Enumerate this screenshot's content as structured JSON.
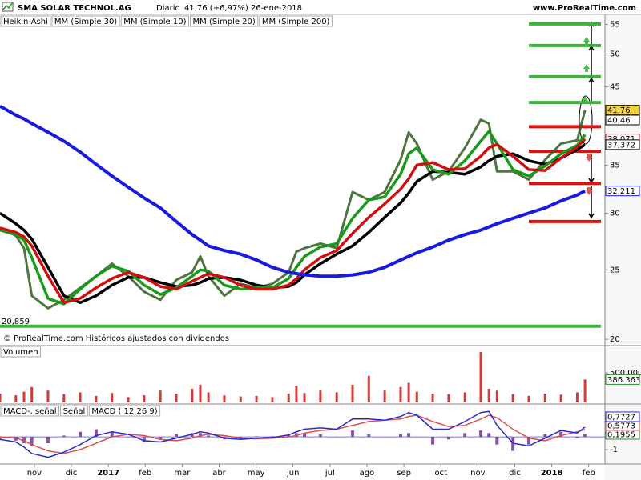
{
  "chart_data": [
    {
      "type": "line",
      "log": true,
      "title": "SMA SOLAR TECHNOL.AG",
      "period": "Diario",
      "quote": "41,76 (+6,97%)",
      "date": "26-ene-2018",
      "source": "www.ProRealTime.com",
      "footer": "© ProRealTime.com Históricos ajustados con dividendos",
      "x": [
        -0.93,
        -0.5,
        -0.28,
        -0.07,
        0.37,
        0.8,
        1.24,
        1.67,
        2.1,
        2.54,
        2.97,
        3.41,
        3.84,
        4.27,
        4.49,
        4.71,
        5.14,
        5.58,
        6.01,
        6.44,
        6.88,
        7.09,
        7.31,
        7.74,
        8.18,
        8.61,
        9.05,
        9.48,
        9.91,
        10.13,
        10.35,
        10.78,
        11.21,
        11.65,
        12.08,
        12.3,
        12.52,
        12.95,
        13.38,
        13.82,
        14.25,
        14.69,
        14.9
      ],
      "xlim": [
        -0.93,
        15.44
      ],
      "ylim": [
        19.7,
        56.8
      ],
      "yticks": [
        20,
        25,
        30,
        35,
        45,
        50,
        55
      ],
      "series": [
        {
          "name": "Heikin-Ashi",
          "color": "#2f5d1e",
          "values": [
            28.6,
            27.9,
            26.8,
            23.0,
            22.1,
            22.7,
            23.6,
            24.5,
            25.5,
            24.5,
            23.3,
            22.7,
            24.2,
            24.8,
            26.1,
            24.5,
            23.0,
            23.9,
            23.6,
            23.9,
            24.8,
            26.5,
            26.8,
            27.2,
            26.8,
            32.1,
            31.3,
            32.1,
            35.6,
            38.9,
            37.5,
            33.4,
            34.3,
            37.0,
            40.5,
            40.0,
            34.3,
            34.3,
            33.4,
            35.6,
            37.5,
            37.9,
            41.76
          ]
        },
        {
          "name": "MM (Simple 30)",
          "color": "#000000",
          "values": [
            30.0,
            29.0,
            28.4,
            27.6,
            25.2,
            23.0,
            22.5,
            23.0,
            23.8,
            24.4,
            24.4,
            24.0,
            23.7,
            23.8,
            24.0,
            24.3,
            24.4,
            24.2,
            23.8,
            23.6,
            23.7,
            24.0,
            24.6,
            25.5,
            26.3,
            27.0,
            28.2,
            29.6,
            31.0,
            32.0,
            33.2,
            34.3,
            34.2,
            34.0,
            34.8,
            35.5,
            36.0,
            36.3,
            35.5,
            35.1,
            35.8,
            36.8,
            37.372
          ]
        },
        {
          "name": "MM (Simple 10)",
          "color": "#1a9a1a",
          "values": [
            28.4,
            28.0,
            27.5,
            26.0,
            22.8,
            22.4,
            23.5,
            24.5,
            25.3,
            24.9,
            23.8,
            23.1,
            23.6,
            24.5,
            25.0,
            24.9,
            23.8,
            23.5,
            23.6,
            23.6,
            24.3,
            25.2,
            26.1,
            26.9,
            27.2,
            29.5,
            31.3,
            31.6,
            34.0,
            36.3,
            37.0,
            34.5,
            34.0,
            35.5,
            37.8,
            39.0,
            37.5,
            34.5,
            33.8,
            34.9,
            36.3,
            37.3,
            38.6
          ]
        },
        {
          "name": "MM (Simple 20)",
          "color": "#d01010",
          "values": [
            28.6,
            28.2,
            27.8,
            27.0,
            24.5,
            22.5,
            22.8,
            23.6,
            24.3,
            24.8,
            24.4,
            23.7,
            23.5,
            24.1,
            24.4,
            24.7,
            24.4,
            23.8,
            23.5,
            23.5,
            23.8,
            24.3,
            25.0,
            26.0,
            26.6,
            28.1,
            29.6,
            30.9,
            32.4,
            33.5,
            35.0,
            35.3,
            34.5,
            34.6,
            36.0,
            37.0,
            37.4,
            36.0,
            34.5,
            34.4,
            35.8,
            37.1,
            38.071
          ]
        },
        {
          "name": "MM (Simple 200)",
          "color": "#1a1adf",
          "values": [
            42.3,
            41.1,
            40.6,
            40.0,
            38.9,
            37.8,
            36.5,
            35.1,
            33.8,
            32.6,
            31.5,
            30.5,
            29.2,
            28.0,
            27.5,
            27.0,
            26.6,
            26.3,
            25.8,
            25.2,
            24.8,
            24.7,
            24.6,
            24.5,
            24.5,
            24.6,
            24.8,
            25.2,
            25.8,
            26.1,
            26.4,
            26.9,
            27.5,
            28.0,
            28.4,
            28.7,
            29.0,
            29.5,
            30.0,
            30.5,
            31.2,
            31.8,
            32.211
          ]
        }
      ],
      "levels": [
        {
          "value": 55.1,
          "color": "#3cb33c"
        },
        {
          "value": 51.4,
          "color": "#3cb33c"
        },
        {
          "value": 46.5,
          "color": "#3cb33c"
        },
        {
          "value": 42.8,
          "color": "#3cb33c"
        },
        {
          "value": 39.6,
          "color": "#e01010"
        },
        {
          "value": 36.6,
          "color": "#e01010"
        },
        {
          "value": 33.0,
          "color": "#e01010"
        },
        {
          "value": 29.2,
          "color": "#e01010"
        }
      ],
      "min_line": {
        "value": 20.859,
        "label": "20,859",
        "color": "#3cb33c"
      },
      "price_labels": [
        {
          "value": 41.76,
          "label": "41,76",
          "color": "#000000",
          "background": "#f5d142"
        },
        {
          "value": 40.46,
          "label": "40,46",
          "color": "#000000"
        },
        {
          "value": 38.071,
          "label": "38,071",
          "color": "#d01010"
        },
        {
          "value": 37.372,
          "label": "37,372",
          "color": "#000000"
        },
        {
          "value": 32.211,
          "label": "32,211",
          "color": "#1a1adf"
        }
      ]
    },
    {
      "type": "bar",
      "title": "Volumen",
      "ylim": [
        0,
        905000
      ],
      "yticks": [
        {
          "value": 500000,
          "label": "500.000"
        }
      ],
      "series": [
        {
          "name": "Volumen",
          "color": "#d23b3b",
          "values": [
            150000,
            120000,
            180000,
            260000,
            200000,
            140000,
            170000,
            110000,
            160000,
            90000,
            120000,
            200000,
            150000,
            230000,
            300000,
            170000,
            120000,
            100000,
            110000,
            90000,
            150000,
            280000,
            160000,
            200000,
            170000,
            300000,
            450000,
            200000,
            260000,
            330000,
            180000,
            150000,
            140000,
            170000,
            850000,
            230000,
            200000,
            140000,
            110000,
            150000,
            130000,
            170000,
            386363
          ]
        }
      ],
      "last_label": {
        "value": 386363,
        "label": "386.363",
        "color": "#2a8a2a"
      }
    },
    {
      "type": "line",
      "ylim": [
        -2.0,
        2.45
      ],
      "yticks": [
        -1
      ],
      "xticks": [
        {
          "value": 0,
          "label": "nov"
        },
        {
          "value": 1,
          "label": "dic"
        },
        {
          "value": 2,
          "label": "2017"
        },
        {
          "value": 3,
          "label": "feb"
        },
        {
          "value": 4,
          "label": "mar"
        },
        {
          "value": 5,
          "label": "abr"
        },
        {
          "value": 6,
          "label": "may"
        },
        {
          "value": 7,
          "label": "jun"
        },
        {
          "value": 8,
          "label": "jul"
        },
        {
          "value": 9,
          "label": "ago"
        },
        {
          "value": 10,
          "label": "sep"
        },
        {
          "value": 11,
          "label": "oct"
        },
        {
          "value": 12,
          "label": "nov"
        },
        {
          "value": 13,
          "label": "dic"
        },
        {
          "value": 14,
          "label": "2018"
        },
        {
          "value": 15,
          "label": "feb"
        }
      ],
      "series": [
        {
          "name": "MACD-, señal",
          "color": "#8a4fa8",
          "style": "histogram",
          "values": [
            -0.2,
            -0.3,
            -0.5,
            -0.7,
            -0.5,
            0.1,
            0.4,
            0.6,
            0.4,
            0,
            -0.4,
            -0.2,
            0.2,
            0.3,
            0.3,
            0.1,
            -0.2,
            -0.1,
            0.05,
            0.05,
            0.15,
            0.3,
            0.3,
            0.2,
            0,
            0.5,
            0.2,
            0,
            0.2,
            0.3,
            0,
            -0.6,
            -0.2,
            0.3,
            0.5,
            0.3,
            -0.6,
            -1.1,
            -0.6,
            0.2,
            0.4,
            -0.1,
            0.1955
          ]
        },
        {
          "name": "Señal",
          "color": "#e05050",
          "style": "line",
          "values": [
            0,
            -0.1,
            -0.3,
            -0.6,
            -1.1,
            -1.3,
            -1.0,
            -0.5,
            0.0,
            0.2,
            0.1,
            -0.2,
            -0.3,
            -0.1,
            0.1,
            0.2,
            0.1,
            -0.1,
            -0.15,
            -0.1,
            0.0,
            0.1,
            0.3,
            0.5,
            0.6,
            0.9,
            1.2,
            1.3,
            1.4,
            1.6,
            1.7,
            1.2,
            0.8,
            0.9,
            1.4,
            1.7,
            1.5,
            0.6,
            -0.1,
            -0.3,
            0.1,
            0.4,
            0.5773
          ]
        },
        {
          "name": "MACD ( 12 26 9)",
          "color": "#2a2ad0",
          "style": "line",
          "values": [
            -0.2,
            -0.4,
            -0.8,
            -1.3,
            -1.6,
            -1.2,
            -0.6,
            0.1,
            0.4,
            0.2,
            -0.3,
            -0.4,
            -0.1,
            0.2,
            0.4,
            0.3,
            -0.1,
            -0.2,
            -0.1,
            -0.05,
            0.15,
            0.4,
            0.6,
            0.7,
            0.6,
            1.4,
            1.4,
            1.3,
            1.6,
            1.9,
            1.7,
            0.6,
            0.6,
            1.2,
            1.9,
            2.0,
            0.9,
            -0.5,
            -0.7,
            -0.1,
            0.5,
            0.3,
            0.7727
          ]
        }
      ],
      "value_labels": [
        {
          "value": 0.7727,
          "label": "0,7727",
          "color": "#2a2ad0"
        },
        {
          "value": 0.5773,
          "label": "0,5773",
          "color": "#e05050"
        },
        {
          "value": 0.1955,
          "label": "0,1955",
          "color": "#2a8a2a"
        }
      ]
    }
  ]
}
